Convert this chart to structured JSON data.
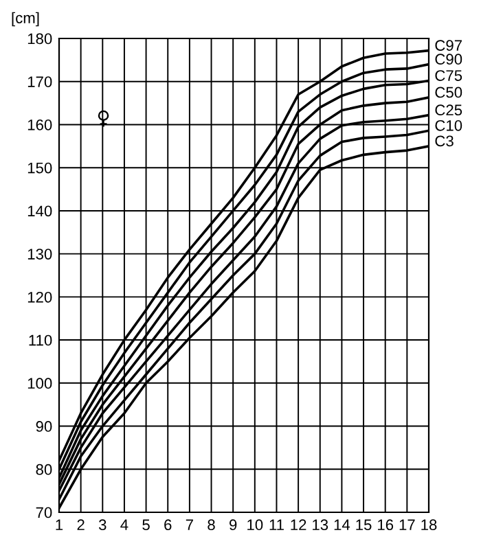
{
  "chart_data": {
    "type": "line",
    "ylabel": "[cm]",
    "annotations": [
      "♀"
    ],
    "x": [
      1,
      2,
      3,
      4,
      5,
      6,
      7,
      8,
      9,
      10,
      11,
      12,
      13,
      14,
      15,
      16,
      17,
      18
    ],
    "series": [
      {
        "name": "C97",
        "color": "#000000",
        "values": [
          82,
          93,
          102,
          110,
          117,
          124.5,
          131,
          137,
          143,
          150,
          157.5,
          167,
          170,
          173.5,
          175.5,
          176.5,
          176.7,
          177.2
        ]
      },
      {
        "name": "C90",
        "color": "#000000",
        "values": [
          80,
          91,
          99.5,
          107,
          114,
          121,
          128,
          134,
          140,
          146,
          153,
          163,
          167,
          170,
          172,
          172.8,
          173,
          174
        ]
      },
      {
        "name": "C75",
        "color": "#000000",
        "values": [
          78,
          89,
          97,
          104,
          111,
          118,
          124.5,
          130.5,
          136,
          142,
          149,
          159.5,
          164,
          166.7,
          168.3,
          169.2,
          169.4,
          170.2
        ]
      },
      {
        "name": "C50",
        "color": "#000000",
        "values": [
          76.5,
          87,
          95,
          101.5,
          108,
          114.5,
          121,
          127,
          132.5,
          138.5,
          145,
          155.5,
          160,
          163.3,
          164.4,
          165,
          165.3,
          166.3
        ]
      },
      {
        "name": "C25",
        "color": "#000000",
        "values": [
          75,
          85,
          93,
          99,
          105,
          111,
          117,
          123,
          128.5,
          134,
          141,
          151,
          156.7,
          159.8,
          160.6,
          160.9,
          161.3,
          162.2
        ]
      },
      {
        "name": "C10",
        "color": "#000000",
        "values": [
          73,
          83,
          90,
          96,
          102,
          108,
          114,
          119.5,
          125,
          130,
          137,
          147,
          152.8,
          156,
          156.9,
          157.2,
          157.6,
          158.6
        ]
      },
      {
        "name": "C3",
        "color": "#000000",
        "values": [
          71,
          80,
          87.5,
          93,
          100,
          105,
          110.5,
          115.5,
          121,
          126,
          133,
          143,
          149.5,
          151.7,
          153,
          153.6,
          154,
          155
        ]
      }
    ],
    "xlim": [
      1,
      18
    ],
    "xticks": [
      1,
      2,
      3,
      4,
      5,
      6,
      7,
      8,
      9,
      10,
      11,
      12,
      13,
      14,
      15,
      16,
      17,
      18
    ],
    "ylim": [
      70,
      180
    ],
    "yticks": [
      70,
      80,
      90,
      100,
      110,
      120,
      130,
      140,
      150,
      160,
      170,
      180
    ],
    "grid": true,
    "legend": false,
    "marker": "none",
    "line_style": "solid"
  }
}
